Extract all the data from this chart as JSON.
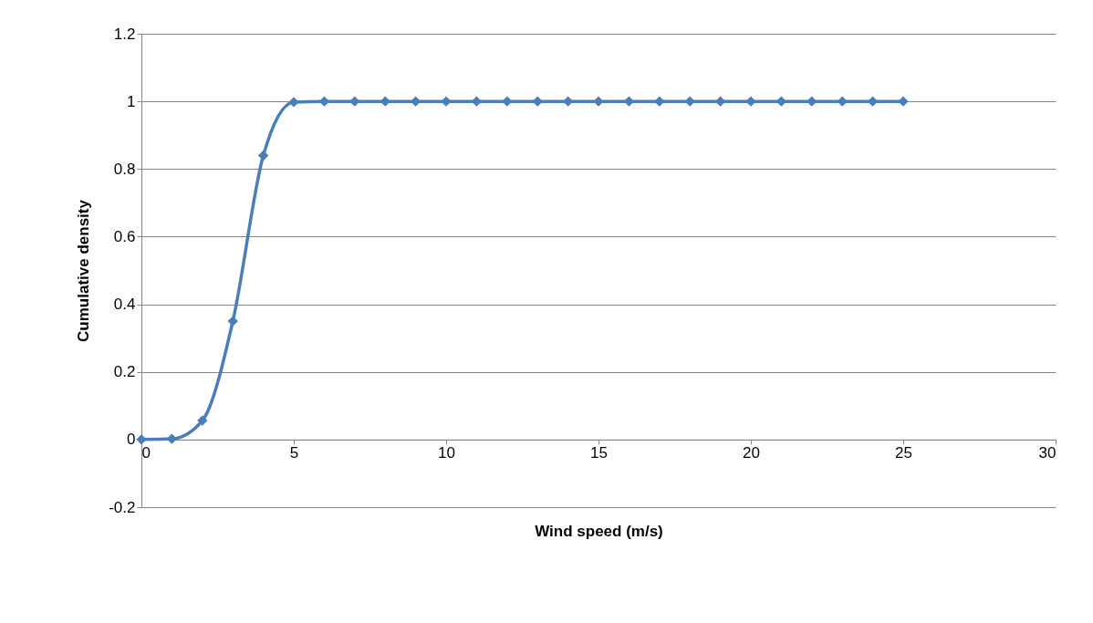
{
  "chart_data": {
    "type": "line",
    "xlabel": "Wind speed (m/s)",
    "ylabel": "Cumulative density",
    "x": [
      0,
      1,
      2,
      3,
      4,
      5,
      6,
      7,
      8,
      9,
      10,
      11,
      12,
      13,
      14,
      15,
      16,
      17,
      18,
      19,
      20,
      21,
      22,
      23,
      24,
      25
    ],
    "series": [
      {
        "color": "#4a7ebb",
        "values": [
          0,
          0.002,
          0.056,
          0.35,
          0.84,
          0.998,
          1,
          1,
          1,
          1,
          1,
          1,
          1,
          1,
          1,
          1,
          1,
          1,
          1,
          1,
          1,
          1,
          1,
          1,
          1,
          1
        ]
      }
    ],
    "xlim": [
      0,
      30
    ],
    "xticks": [
      0,
      5,
      10,
      15,
      20,
      25,
      30
    ],
    "ylim": [
      -0.2,
      1.2
    ],
    "yticks": [
      -0.2,
      0,
      0.2,
      0.4,
      0.6,
      0.8,
      1,
      1.2
    ],
    "grid": "y",
    "marker": "diamond",
    "line_style": "solid"
  }
}
